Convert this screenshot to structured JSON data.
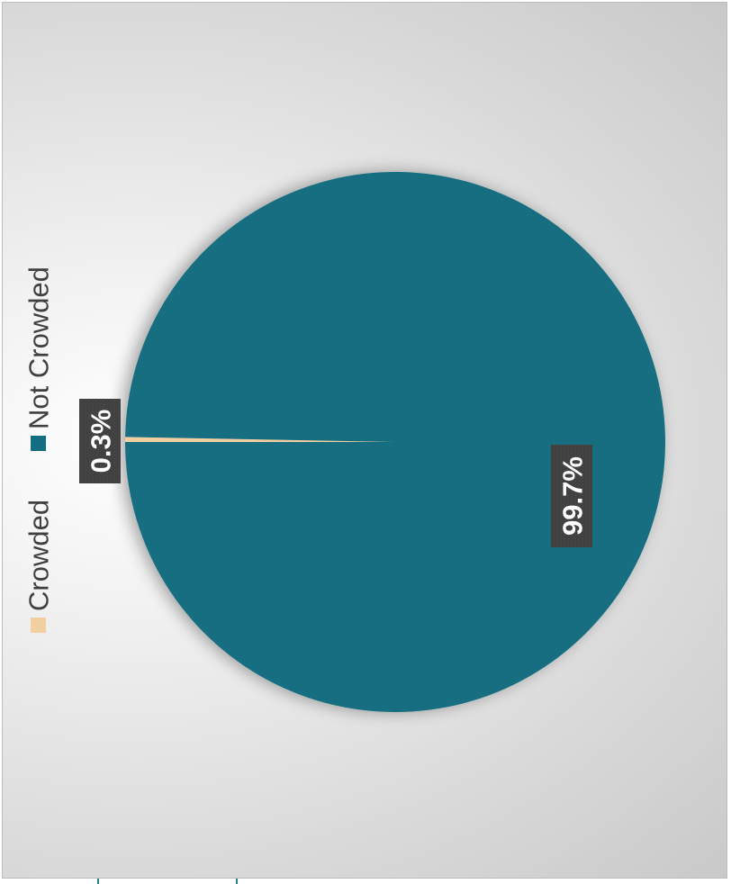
{
  "chart_data": {
    "type": "pie",
    "categories": [
      "Crowded",
      "Not Crowded"
    ],
    "values": [
      0.3,
      99.7
    ],
    "data_labels": [
      "0.3%",
      "99.7%"
    ],
    "colors": [
      "#f2cfa0",
      "#126e80"
    ],
    "legend": {
      "entries": [
        "Crowded",
        "Not Crowded"
      ],
      "placement": "left (rotated)"
    },
    "title": "",
    "orientation": "rotated 90° counter-clockwise"
  }
}
